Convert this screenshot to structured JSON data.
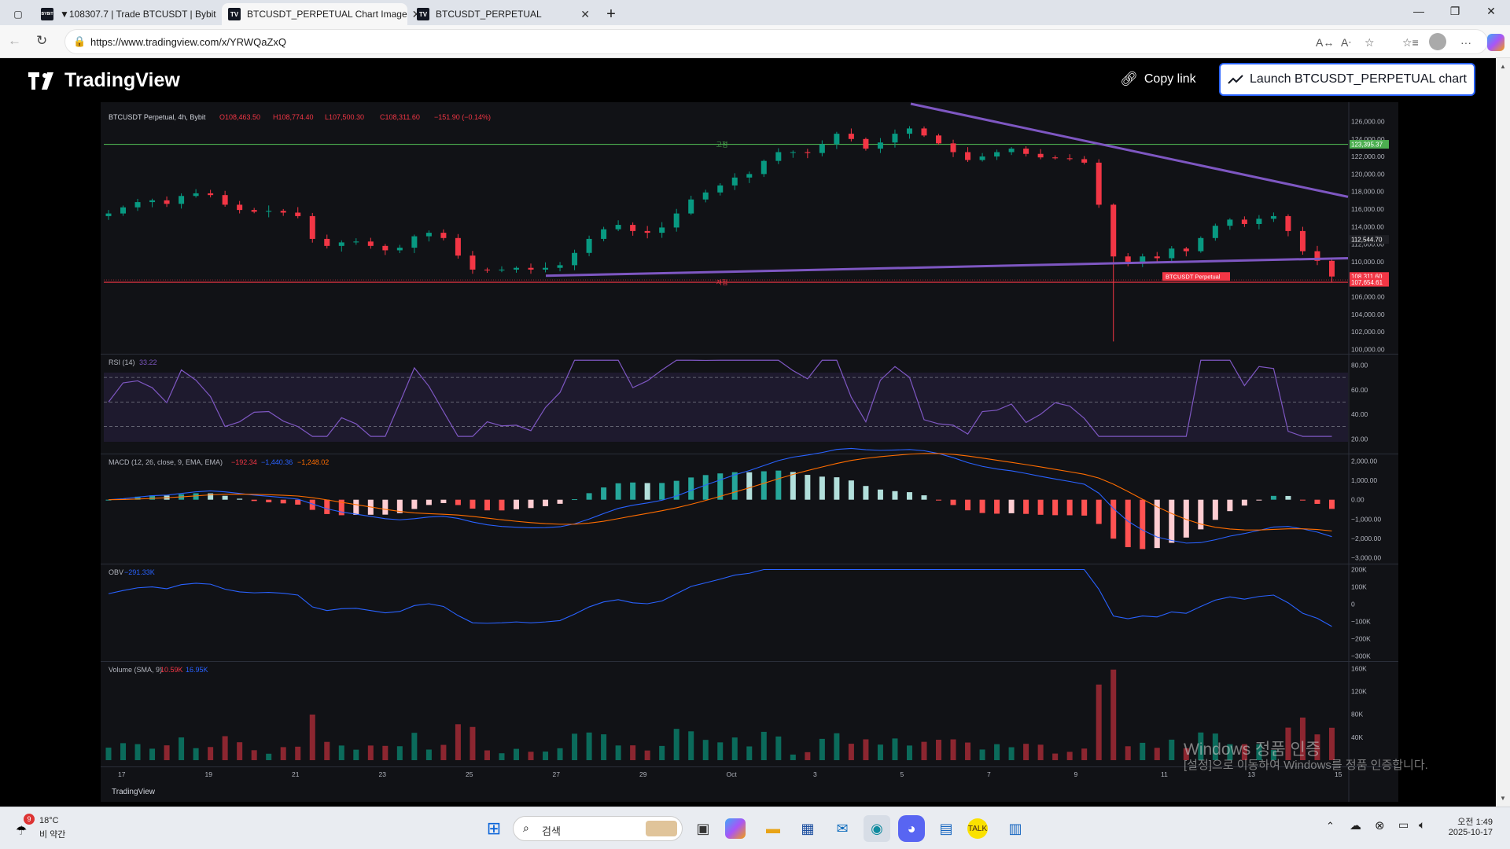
{
  "browser": {
    "tabs": [
      {
        "title": "▼108307.7 | Trade BTCUSDT | Bybit",
        "favicon": "BYBIT"
      },
      {
        "title": "BTCUSDT_PERPETUAL Chart Image",
        "favicon": "TV"
      },
      {
        "title": "BTCUSDT_PERPETUAL",
        "favicon": "TV"
      }
    ],
    "url": "https://www.tradingview.com/x/YRWQaZxQ"
  },
  "header": {
    "logo": "TradingView",
    "copy_link": "Copy link",
    "launch": "Launch BTCUSDT_PERPETUAL chart"
  },
  "legend": {
    "symbol": "BTCUSDT Perpetual, 4h, Bybit",
    "o": "O108,463.50",
    "h": "H108,774.40",
    "l": "L107,500.30",
    "c": "C108,311.60",
    "chg": "−151.90 (−0.14%)",
    "rsi_label": "RSI (14)",
    "rsi_val": "33.22",
    "macd_label": "MACD (12, 26, close, 9, EMA, EMA)",
    "macd_a": "−192.34",
    "macd_b": "−1,440.36",
    "macd_c": "−1,248.02",
    "obv_label": "OBV",
    "obv_val": "−291.33K",
    "vol_label": "Volume (SMA, 9)",
    "vol_a": "10.59K",
    "vol_b": "16.95K",
    "hline_high": "고점",
    "hline_low": "저점",
    "footer_logo": "TradingView"
  },
  "chart_data": {
    "type": "candlestick",
    "price_axis": [
      "126,000.00",
      "124,000.00",
      "122,000.00",
      "120,000.00",
      "118,000.00",
      "116,000.00",
      "114,000.00",
      "112,000.00",
      "110,000.00",
      "108,000.00",
      "106,000.00",
      "104,000.00",
      "102,000.00",
      "100,000.00"
    ],
    "price_ylim": [
      99500,
      127300
    ],
    "price_tags": {
      "hline_high": "123,395.37",
      "current": "112,544.70",
      "symbol_tag": "BTCUSDT Perpetual",
      "last": "108,311.60",
      "hline_low": "107,654.61"
    },
    "hlines": {
      "high": 123395.37,
      "low": 107654.61
    },
    "rsi_axis": [
      "80.00",
      "60.00",
      "40.00",
      "20.00"
    ],
    "macd_axis": [
      "2,000.00",
      "1,000.00",
      "0.00",
      "−1,000.00",
      "−2,000.00",
      "−3,000.00"
    ],
    "obv_axis": [
      "200K",
      "100K",
      "0",
      "−100K",
      "−200K",
      "−300K"
    ],
    "vol_axis": [
      "160K",
      "120K",
      "80K",
      "40K"
    ],
    "x_labels": [
      "17",
      "19",
      "21",
      "23",
      "25",
      "27",
      "29",
      "Oct",
      "3",
      "5",
      "7",
      "9",
      "11",
      "13",
      "15"
    ],
    "close_path": [
      115500,
      116200,
      116800,
      117000,
      116600,
      117500,
      117800,
      117600,
      116500,
      115900,
      115700,
      115800,
      115600,
      115200,
      112600,
      111800,
      112200,
      112300,
      111800,
      111300,
      111600,
      112900,
      113300,
      112700,
      110700,
      109100,
      109000,
      109100,
      109300,
      109100,
      109300,
      109600,
      111000,
      112600,
      113700,
      114200,
      113500,
      113300,
      113900,
      115500,
      117100,
      117900,
      118700,
      119600,
      120000,
      121500,
      122500,
      122500,
      122400,
      123400,
      124600,
      124000,
      122900,
      123600,
      124600,
      125200,
      124400,
      123500,
      122500,
      121600,
      122000,
      122500,
      122900,
      122300,
      121900,
      121800,
      121700,
      121300,
      116500,
      110600,
      110000,
      110600,
      110400,
      111500,
      111200,
      112700,
      114100,
      114800,
      114300,
      114900,
      115200,
      113500,
      111200,
      110100,
      108312
    ],
    "high_spike_idx": 63,
    "low_spike": 100900
  },
  "watermark": {
    "line1": "Windows 정품 인증",
    "line2": "[설정]으로 이동하여 Windows를 정품 인증합니다."
  },
  "taskbar": {
    "weather_temp": "18°C",
    "weather_desc": "비 약간",
    "weather_badge": "9",
    "search_placeholder": "검색",
    "time": "오전 1:49",
    "date": "2025-10-17"
  }
}
